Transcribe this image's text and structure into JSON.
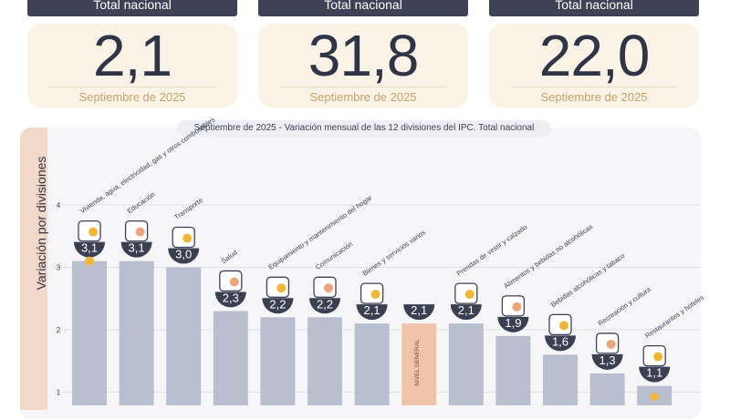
{
  "kpis": [
    {
      "header": "Total nacional",
      "value": "2,1",
      "date": "Septiembre de 2025"
    },
    {
      "header": "Total nacional",
      "value": "31,8",
      "date": "Septiembre de 2025"
    },
    {
      "header": "Total nacional",
      "value": "22,0",
      "date": "Septiembre de 2025"
    }
  ],
  "subtitle": "Septiembre de 2025 - Variación mensual de las 12 divisiones del IPC. Total nacional",
  "chart_data": {
    "type": "bar",
    "title": "Septiembre de 2025 - Variación mensual de las 12 divisiones del IPC. Total nacional",
    "ylabel": "Variación por divisiones",
    "ylim": [
      0,
      4
    ],
    "yticks": [
      "1",
      "2",
      "3",
      "4"
    ],
    "categories": [
      "Vivienda, agua, electricidad, gas y otros combustibles",
      "Educación",
      "Transporte",
      "Salud",
      "Equipamiento y mantenimiento del hogar",
      "Comunicación",
      "Bienes y servicios varios",
      "NIVEL GENERAL",
      "Prendas de vestir y calzado",
      "Alimentos y bebidas no alcohólicas",
      "Bebidas alcohólicas y tabaco",
      "Recreación y cultura",
      "Restaurantes y hoteles"
    ],
    "values": [
      3.1,
      3.1,
      3.0,
      2.3,
      2.2,
      2.2,
      2.1,
      2.1,
      2.1,
      1.9,
      1.6,
      1.3,
      1.1
    ],
    "value_labels": [
      "3,1",
      "3,1",
      "3,0",
      "2,3",
      "2,2",
      "2,2",
      "2,1",
      "2,1",
      "2,1",
      "1,9",
      "1,6",
      "1,3",
      "1,1"
    ],
    "highlight_category": "NIVEL GENERAL",
    "colors": {
      "bar": "#b9bfcf",
      "highlight_bar": "#f0c3ab",
      "bubble": "#3a3f52",
      "accent": "#f2b631",
      "grid": "#e0e1e6"
    },
    "icons": [
      "lightbulb-icon",
      "book-icon",
      "bus-icon",
      "medical-kit-icon",
      "furniture-icon",
      "phone-icon",
      "scissors-icon",
      "",
      "tshirt-icon",
      "food-plate-icon",
      "wine-bottle-icon",
      "umbrella-icon",
      "dinner-plate-icon"
    ]
  }
}
